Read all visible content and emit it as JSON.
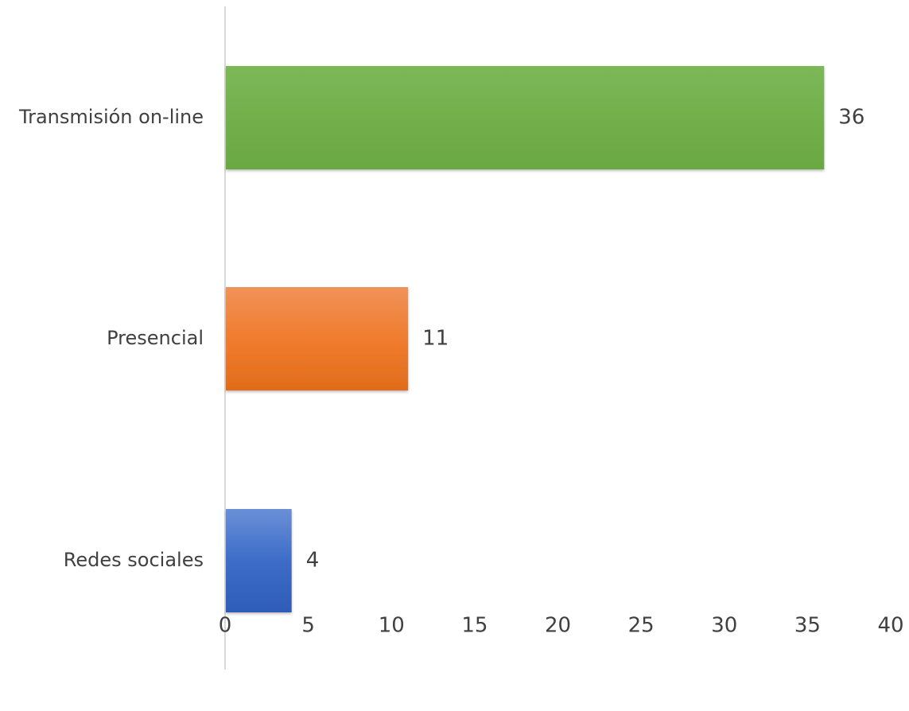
{
  "chart_data": {
    "type": "bar",
    "orientation": "horizontal",
    "categories": [
      "Transmisión on-line",
      "Presencial",
      "Redes sociales"
    ],
    "values": [
      36,
      11,
      4
    ],
    "bar_colors": [
      "#70ad47",
      "#ed7d31",
      "#4472c4"
    ],
    "xlim": [
      0,
      40
    ],
    "x_ticks": [
      0,
      5,
      10,
      15,
      20,
      25,
      30,
      35,
      40
    ],
    "data_labels": [
      "36",
      "11",
      "4"
    ],
    "grid": false,
    "legend": "none"
  }
}
